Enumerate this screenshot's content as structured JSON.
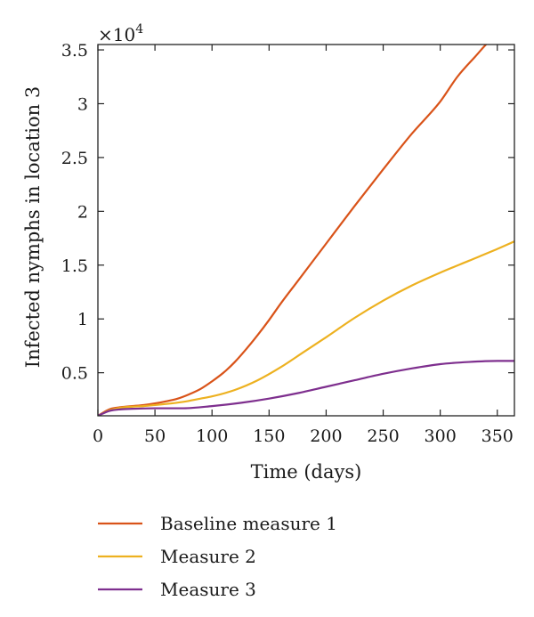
{
  "chart_data": {
    "type": "line",
    "title": "",
    "xlabel": "Time (days)",
    "ylabel": "Infected nymphs in location 3",
    "y_multiplier_label": "×10",
    "y_multiplier_exp": "4",
    "xlim": [
      0,
      365
    ],
    "ylim": [
      0.1,
      3.55
    ],
    "xticks": [
      0,
      50,
      100,
      150,
      200,
      250,
      300,
      350
    ],
    "xtick_labels": [
      "0",
      "50",
      "100",
      "150",
      "200",
      "250",
      "300",
      "350"
    ],
    "yticks": [
      0.5,
      1,
      1.5,
      2,
      2.5,
      3,
      3.5
    ],
    "ytick_labels": [
      "0.5",
      "1",
      "1.5",
      "2",
      "2.5",
      "3",
      "3.5"
    ],
    "grid": false,
    "legend_position": "bottom",
    "series": [
      {
        "name": "Baseline measure 1",
        "color": "#d95319",
        "x": [
          0,
          10,
          20,
          30,
          40,
          50,
          60,
          70,
          80,
          90,
          100,
          110,
          120,
          130,
          140,
          150,
          160,
          175,
          200,
          225,
          250,
          275,
          300,
          315,
          330,
          345,
          355,
          365
        ],
        "y": [
          0.1,
          0.16,
          0.18,
          0.19,
          0.2,
          0.215,
          0.235,
          0.26,
          0.3,
          0.35,
          0.42,
          0.5,
          0.6,
          0.72,
          0.85,
          0.99,
          1.14,
          1.35,
          1.7,
          2.05,
          2.39,
          2.72,
          3.02,
          3.25,
          3.43,
          3.6,
          3.66,
          3.72
        ]
      },
      {
        "name": "Measure 2",
        "color": "#edb120",
        "x": [
          0,
          10,
          20,
          30,
          40,
          50,
          60,
          75,
          90,
          100,
          120,
          140,
          160,
          180,
          200,
          225,
          250,
          275,
          300,
          325,
          350,
          365
        ],
        "y": [
          0.1,
          0.15,
          0.175,
          0.185,
          0.19,
          0.2,
          0.21,
          0.23,
          0.26,
          0.28,
          0.34,
          0.43,
          0.55,
          0.69,
          0.83,
          1.01,
          1.17,
          1.31,
          1.43,
          1.54,
          1.65,
          1.72
        ]
      },
      {
        "name": "Measure 3",
        "color": "#7e2f8e",
        "x": [
          0,
          10,
          20,
          30,
          50,
          75,
          100,
          125,
          150,
          175,
          200,
          225,
          250,
          275,
          300,
          325,
          350,
          365
        ],
        "y": [
          0.1,
          0.145,
          0.16,
          0.165,
          0.17,
          0.17,
          0.19,
          0.22,
          0.26,
          0.31,
          0.37,
          0.43,
          0.49,
          0.54,
          0.58,
          0.6,
          0.61,
          0.61
        ]
      }
    ]
  }
}
